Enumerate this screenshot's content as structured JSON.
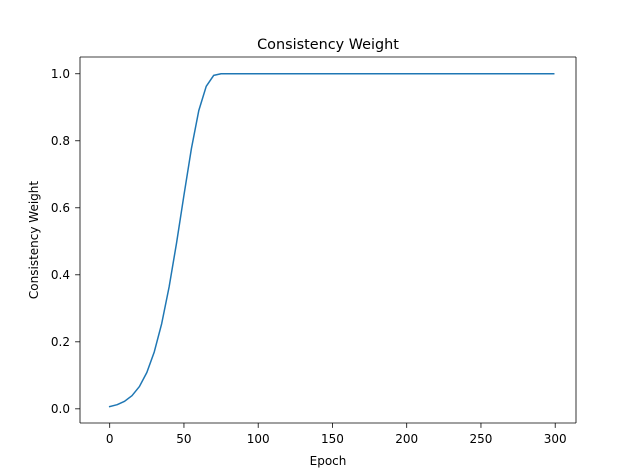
{
  "chart_data": {
    "type": "line",
    "title": "Consistency Weight",
    "xlabel": "Epoch",
    "ylabel": "Consistency Weight",
    "xlim": [
      -20,
      314
    ],
    "ylim": [
      -0.0423,
      1.05
    ],
    "xticks": [
      0,
      50,
      100,
      150,
      200,
      250,
      300
    ],
    "yticks": [
      0.0,
      0.2,
      0.4,
      0.6,
      0.8,
      1.0
    ],
    "ytick_labels": [
      "0.0",
      "0.2",
      "0.4",
      "0.6",
      "0.8",
      "1.0"
    ],
    "grid": false,
    "legend": "none",
    "series": [
      {
        "color": "#1f77b4",
        "x": [
          0,
          5,
          10,
          15,
          20,
          25,
          30,
          35,
          40,
          45,
          50,
          55,
          60,
          65,
          70,
          75,
          80,
          85,
          90,
          100,
          150,
          200,
          250,
          299
        ],
        "y": [
          0.0067,
          0.0124,
          0.0224,
          0.0392,
          0.0665,
          0.1084,
          0.1697,
          0.2542,
          0.3636,
          0.4947,
          0.6376,
          0.7762,
          0.8904,
          0.9626,
          0.9951,
          1.0,
          1.0,
          1.0,
          1.0,
          1.0,
          1.0,
          1.0,
          1.0,
          1.0
        ]
      }
    ]
  }
}
